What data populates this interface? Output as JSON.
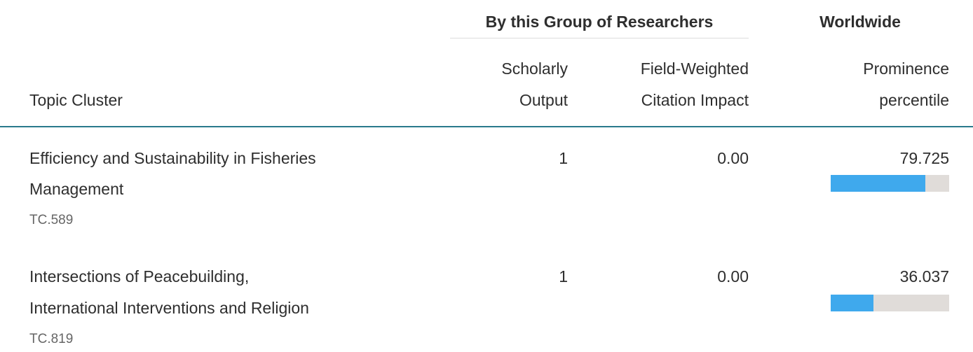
{
  "header": {
    "group_researchers": "By this Group of Researchers",
    "group_worldwide": "Worldwide",
    "columns": {
      "topic": "Topic Cluster",
      "output": [
        "Scholarly",
        "Output"
      ],
      "fwci": [
        "Field-Weighted",
        "Citation Impact"
      ],
      "prominence": [
        "Prominence",
        "percentile"
      ]
    }
  },
  "percentile_range": [
    0,
    100
  ],
  "table": {
    "rows": [
      {
        "name": [
          "Efficiency and Sustainability in Fisheries",
          "Management"
        ],
        "code": "TC.589",
        "output": 1,
        "fwci": "0.00",
        "prominence": 79.725
      },
      {
        "name": [
          "Intersections of Peacebuilding,",
          "International Interventions and Religion"
        ],
        "code": "TC.819",
        "output": 1,
        "fwci": "0.00",
        "prominence": 36.037
      }
    ]
  }
}
